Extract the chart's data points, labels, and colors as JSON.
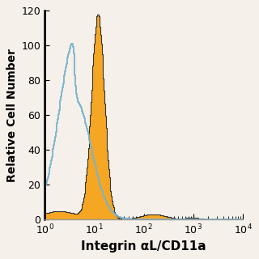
{
  "title": "",
  "xlabel": "Integrin αL/CD11a",
  "ylabel": "Relative Cell Number",
  "xlim": [
    1,
    10000
  ],
  "ylim": [
    0,
    120
  ],
  "yticks": [
    0,
    20,
    40,
    60,
    80,
    100,
    120
  ],
  "background_color": "#f5f0ea",
  "blue_color": "#7ab3cc",
  "orange_color": "#f5a623",
  "dark_outline_color": "#333333",
  "blue_peak_log": 0.62,
  "blue_peak_height": 101,
  "blue_sigma": 0.32,
  "orange_peak_log": 1.08,
  "orange_peak_height": 118,
  "orange_sigma": 0.13,
  "xlabel_fontsize": 11,
  "ylabel_fontsize": 10,
  "tick_fontsize": 9,
  "n_bins": 300
}
